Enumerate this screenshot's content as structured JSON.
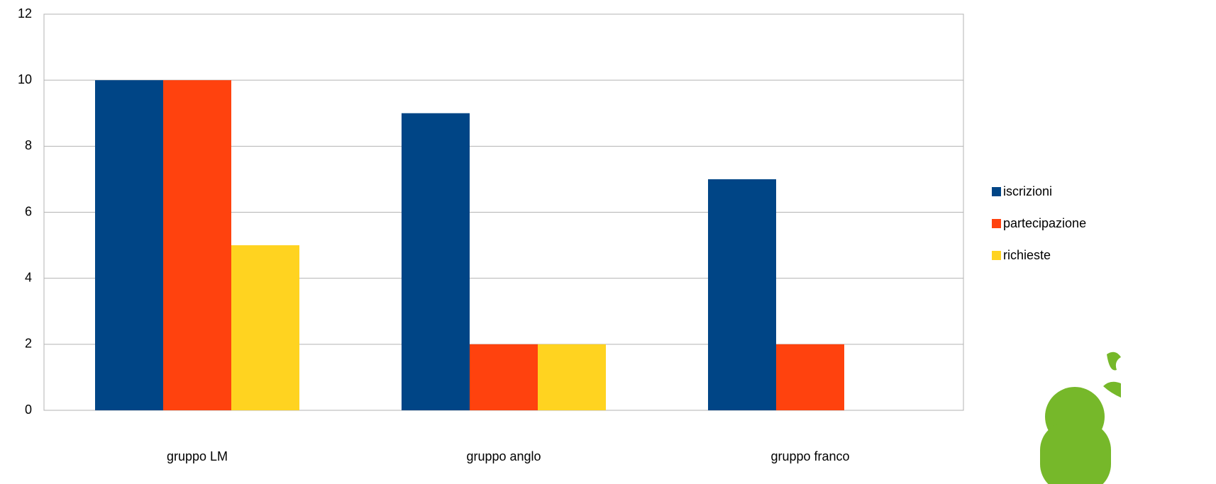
{
  "chart_data": {
    "type": "bar",
    "categories": [
      "gruppo LM",
      "gruppo anglo",
      "gruppo franco"
    ],
    "series": [
      {
        "name": "iscrizioni",
        "color": "#004586",
        "values": [
          10,
          9,
          7
        ]
      },
      {
        "name": "partecipazione",
        "color": "#ff420e",
        "values": [
          10,
          2,
          2
        ]
      },
      {
        "name": "richieste",
        "color": "#ffd320",
        "values": [
          5,
          2,
          0
        ]
      }
    ],
    "ylim": [
      0,
      12
    ],
    "yticks": [
      0,
      2,
      4,
      6,
      8,
      10,
      12
    ],
    "grid": true,
    "legend": "right"
  }
}
